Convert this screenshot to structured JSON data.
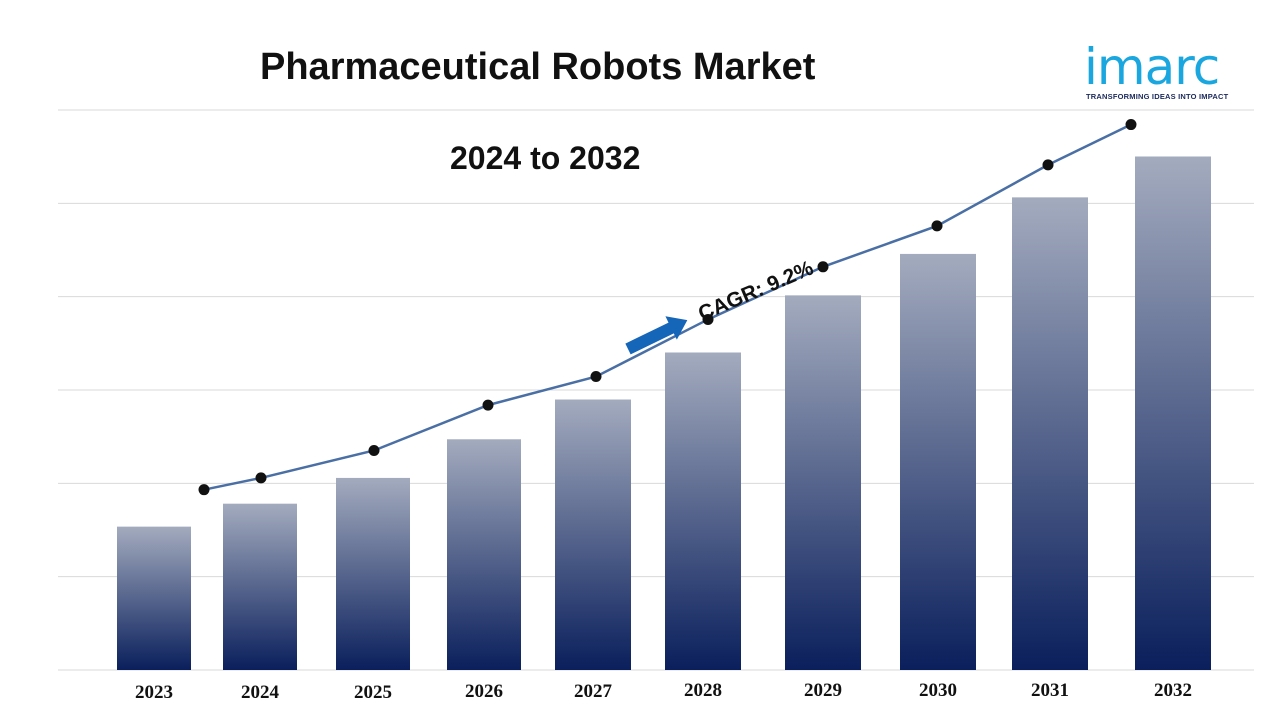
{
  "header": {
    "title": "Pharmaceutical Robots Market",
    "subtitle": "2024 to 2032"
  },
  "logo": {
    "name": "imarc",
    "tagline": "TRANSFORMING IDEAS INTO IMPACT"
  },
  "annotation": {
    "cagr_label": "CAGR: 9.2%"
  },
  "colors": {
    "bar_top": "#a3abbe",
    "bar_bottom": "#0a1f5c",
    "line": "#4a6fa5",
    "marker": "#111111",
    "arrow": "#1565b8",
    "logo": "#1aa6de",
    "grid": "#d9d9d9"
  },
  "chart_data": {
    "type": "bar",
    "title": "Pharmaceutical Robots Market",
    "subtitle": "2024 to 2032",
    "categories": [
      "2023",
      "2024",
      "2025",
      "2026",
      "2027",
      "2028",
      "2029",
      "2030",
      "2031",
      "2032"
    ],
    "series": [
      {
        "type": "bar",
        "values": [
          2.56,
          2.97,
          3.43,
          4.12,
          4.83,
          5.67,
          6.69,
          7.43,
          8.44,
          9.17
        ]
      },
      {
        "type": "line",
        "values": [
          3.22,
          3.43,
          3.92,
          4.73,
          5.24,
          6.26,
          7.2,
          7.93,
          9.02,
          9.74
        ]
      }
    ],
    "ylim": [
      0,
      10
    ],
    "grid": true,
    "legend": "none",
    "annotations": [
      "CAGR: 9.2%"
    ]
  }
}
